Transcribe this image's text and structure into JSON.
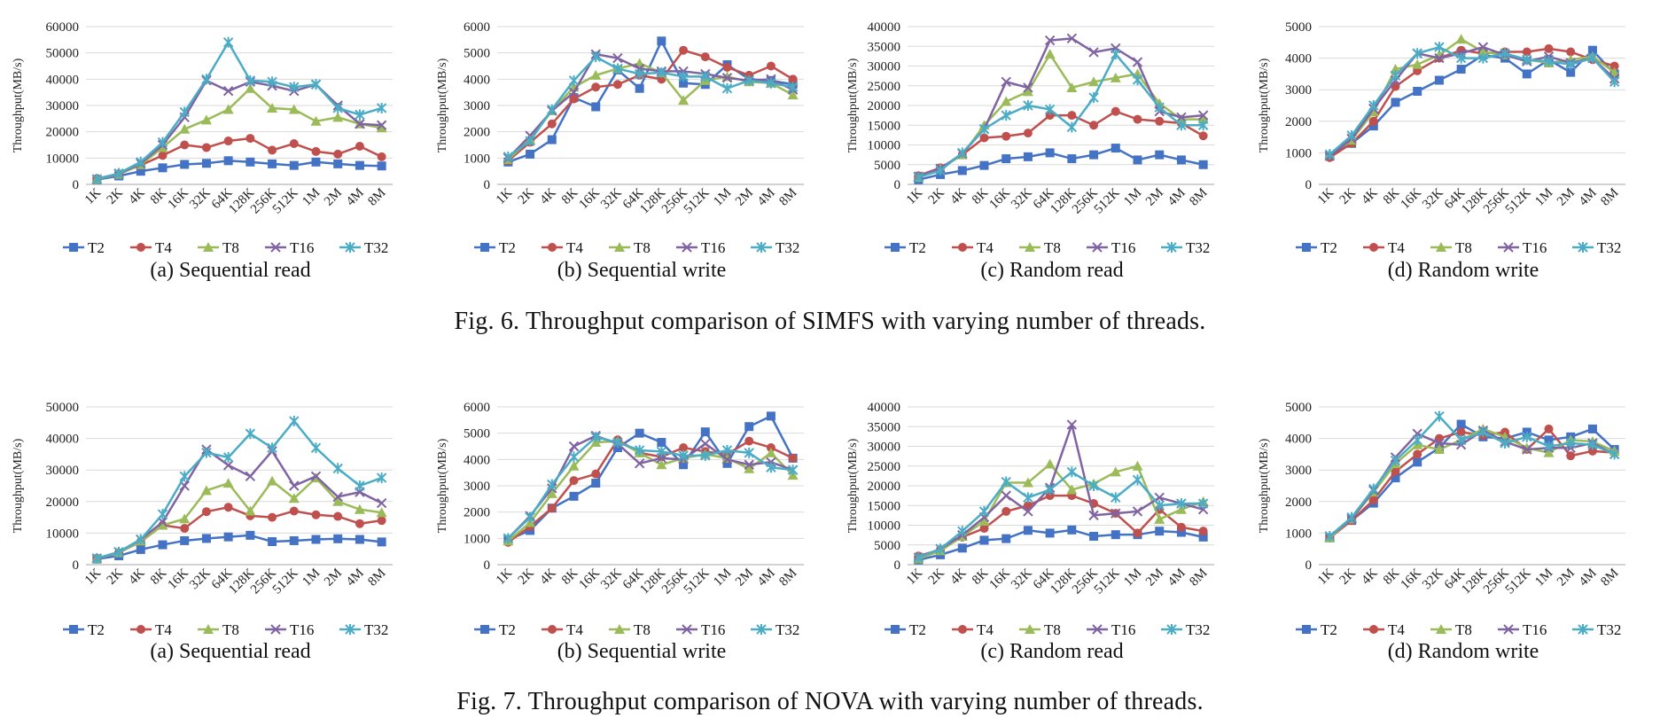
{
  "legend_labels": [
    "T2",
    "T4",
    "T8",
    "T16",
    "T32"
  ],
  "series_colors": [
    "#4472c4",
    "#c0504d",
    "#9bbb59",
    "#8064a2",
    "#4bacc6"
  ],
  "marker_shapes": [
    "square",
    "circle",
    "triangle",
    "x-mark",
    "star-mark"
  ],
  "figures": [
    {
      "caption": "Fig. 6.  Throughput comparison of SIMFS with varying number of threads."
    },
    {
      "caption": "Fig. 7.  Throughput comparison of NOVA with varying number of threads."
    }
  ],
  "chart_data": [
    {
      "type": "line",
      "figure": "Fig. 6",
      "panel": "(a)",
      "title": "Sequential read",
      "ylabel": "Throughput(MB/s)",
      "ylim": [
        0,
        60000
      ],
      "ystep": 10000,
      "yticks": [
        "0",
        "10000",
        "20000",
        "30000",
        "40000",
        "50000",
        "60000"
      ],
      "categories": [
        "1K",
        "2K",
        "4K",
        "8K",
        "16K",
        "32K",
        "64K",
        "128K",
        "256K",
        "512K",
        "1M",
        "2M",
        "4M",
        "8M"
      ],
      "legend": "bottom",
      "grid": true,
      "series": [
        {
          "name": "T2",
          "values": [
            1800,
            3200,
            5000,
            6300,
            7600,
            8000,
            9000,
            8500,
            7800,
            7200,
            8500,
            7800,
            7200,
            7000
          ]
        },
        {
          "name": "T4",
          "values": [
            2200,
            4000,
            7300,
            11000,
            15000,
            14000,
            16500,
            17500,
            13000,
            15500,
            12500,
            11500,
            14500,
            10500
          ]
        },
        {
          "name": "T8",
          "values": [
            2000,
            3800,
            7500,
            14000,
            21000,
            24500,
            28500,
            36500,
            29000,
            28500,
            24000,
            25500,
            23000,
            21500
          ]
        },
        {
          "name": "T16",
          "values": [
            2000,
            4000,
            8000,
            15000,
            25500,
            39500,
            35500,
            39000,
            37500,
            35500,
            38000,
            30000,
            23000,
            22500
          ]
        },
        {
          "name": "T32",
          "values": [
            2000,
            4200,
            8500,
            16000,
            27500,
            40000,
            54000,
            39500,
            39000,
            37000,
            38000,
            29000,
            26500,
            29000
          ]
        }
      ]
    },
    {
      "type": "line",
      "figure": "Fig. 6",
      "panel": "(b)",
      "title": "Sequential write",
      "ylabel": "Throughput(MB/s)",
      "ylim": [
        0,
        6000
      ],
      "ystep": 1000,
      "yticks": [
        "0",
        "1000",
        "2000",
        "3000",
        "4000",
        "5000",
        "6000"
      ],
      "categories": [
        "1K",
        "2K",
        "4K",
        "8K",
        "16K",
        "32K",
        "64K",
        "128K",
        "256K",
        "512K",
        "1M",
        "2M",
        "4M",
        "8M"
      ],
      "legend": "bottom",
      "grid": true,
      "series": [
        {
          "name": "T2",
          "values": [
            850,
            1150,
            1700,
            3300,
            2950,
            4350,
            3650,
            5450,
            3850,
            3800,
            4550,
            4000,
            3950,
            3800
          ]
        },
        {
          "name": "T4",
          "values": [
            900,
            1600,
            2300,
            3250,
            3700,
            3800,
            4150,
            4000,
            5100,
            4850,
            4450,
            4150,
            4500,
            4000
          ]
        },
        {
          "name": "T8",
          "values": [
            950,
            1700,
            2800,
            3700,
            4150,
            4400,
            4600,
            4250,
            3200,
            3950,
            4100,
            3900,
            3850,
            3400
          ]
        },
        {
          "name": "T16",
          "values": [
            1000,
            1850,
            2800,
            3500,
            4950,
            4800,
            4400,
            4300,
            4300,
            4200,
            4050,
            3950,
            4000,
            3600
          ]
        },
        {
          "name": "T32",
          "values": [
            1050,
            1650,
            2850,
            3950,
            4850,
            4400,
            4200,
            4250,
            4100,
            4100,
            3650,
            3950,
            3850,
            3700
          ]
        }
      ]
    },
    {
      "type": "line",
      "figure": "Fig. 6",
      "panel": "(c)",
      "title": "Random read",
      "ylabel": "Throughput(MB/s)",
      "ylim": [
        0,
        40000
      ],
      "ystep": 5000,
      "yticks": [
        "0",
        "5000",
        "10000",
        "15000",
        "20000",
        "25000",
        "30000",
        "35000",
        "40000"
      ],
      "categories": [
        "1K",
        "2K",
        "4K",
        "8K",
        "16K",
        "32K",
        "64K",
        "128K",
        "256K",
        "512K",
        "1M",
        "2M",
        "4M",
        "8M"
      ],
      "legend": "bottom",
      "grid": true,
      "series": [
        {
          "name": "T2",
          "values": [
            1200,
            2500,
            3500,
            4800,
            6500,
            7000,
            8000,
            6500,
            7500,
            9200,
            6200,
            7500,
            6200,
            5000
          ]
        },
        {
          "name": "T4",
          "values": [
            2200,
            4200,
            7500,
            11800,
            12200,
            13000,
            17500,
            17500,
            15000,
            18500,
            16500,
            16000,
            15500,
            12300
          ]
        },
        {
          "name": "T8",
          "values": [
            1800,
            4000,
            7500,
            15000,
            21000,
            23500,
            33000,
            24500,
            26000,
            27000,
            28000,
            20500,
            16500,
            16500
          ]
        },
        {
          "name": "T16",
          "values": [
            2000,
            4000,
            7800,
            14000,
            26000,
            24500,
            36500,
            37000,
            33500,
            34500,
            31000,
            18500,
            17000,
            17500
          ]
        },
        {
          "name": "T32",
          "values": [
            1800,
            3500,
            8000,
            14000,
            17500,
            20000,
            19000,
            14500,
            22000,
            33000,
            26500,
            19500,
            15000,
            15000
          ]
        }
      ]
    },
    {
      "type": "line",
      "figure": "Fig. 6",
      "panel": "(d)",
      "title": "Random write",
      "ylabel": "Throughput(MB/s)",
      "ylim": [
        0,
        5000
      ],
      "ystep": 1000,
      "yticks": [
        "0",
        "1000",
        "2000",
        "3000",
        "4000",
        "5000"
      ],
      "categories": [
        "1K",
        "2K",
        "4K",
        "8K",
        "16K",
        "32K",
        "64K",
        "128K",
        "256K",
        "512K",
        "1M",
        "2M",
        "4M",
        "8M"
      ],
      "legend": "bottom",
      "grid": true,
      "series": [
        {
          "name": "T2",
          "values": [
            900,
            1300,
            1850,
            2600,
            2950,
            3300,
            3650,
            4100,
            4000,
            3500,
            3950,
            3550,
            4250,
            3500
          ]
        },
        {
          "name": "T4",
          "values": [
            850,
            1300,
            2000,
            3100,
            3600,
            4000,
            4250,
            4150,
            4200,
            4200,
            4300,
            4200,
            3950,
            3750
          ]
        },
        {
          "name": "T8",
          "values": [
            950,
            1400,
            2300,
            3650,
            3800,
            4100,
            4600,
            4200,
            4100,
            3950,
            3850,
            3950,
            4050,
            3550
          ]
        },
        {
          "name": "T16",
          "values": [
            900,
            1450,
            2400,
            3300,
            4150,
            4000,
            4150,
            4350,
            4100,
            3900,
            4050,
            3850,
            4000,
            3350
          ]
        },
        {
          "name": "T32",
          "values": [
            950,
            1550,
            2500,
            3450,
            4150,
            4350,
            4000,
            4000,
            4150,
            3950,
            3900,
            3800,
            4000,
            3250
          ]
        }
      ]
    },
    {
      "type": "line",
      "figure": "Fig. 7",
      "panel": "(a)",
      "title": "Sequential read",
      "ylabel": "Throughput(MB/s)",
      "ylim": [
        0,
        50000
      ],
      "ystep": 10000,
      "yticks": [
        "0",
        "10000",
        "20000",
        "30000",
        "40000",
        "50000"
      ],
      "categories": [
        "1K",
        "2K",
        "4K",
        "8K",
        "16K",
        "32K",
        "64K",
        "128K",
        "256K",
        "512K",
        "1M",
        "2M",
        "4M",
        "8M"
      ],
      "legend": "bottom",
      "grid": true,
      "series": [
        {
          "name": "T2",
          "values": [
            1800,
            2800,
            4800,
            6300,
            7600,
            8300,
            8800,
            9300,
            7300,
            7600,
            8000,
            8200,
            8000,
            7200
          ]
        },
        {
          "name": "T4",
          "values": [
            2000,
            3800,
            7300,
            12500,
            11500,
            16800,
            18200,
            15500,
            15000,
            17000,
            15800,
            15300,
            13000,
            14000
          ]
        },
        {
          "name": "T8",
          "values": [
            2000,
            3800,
            7500,
            12500,
            14500,
            23500,
            25800,
            17000,
            26500,
            21000,
            27500,
            20000,
            17500,
            16500
          ]
        },
        {
          "name": "T16",
          "values": [
            2000,
            4000,
            8000,
            13500,
            25000,
            36500,
            31500,
            28000,
            36000,
            25000,
            28000,
            21500,
            23000,
            19500
          ]
        },
        {
          "name": "T32",
          "values": [
            2000,
            4000,
            8000,
            16000,
            28000,
            35500,
            34000,
            41500,
            37000,
            45500,
            37000,
            30500,
            25000,
            27500
          ]
        }
      ]
    },
    {
      "type": "line",
      "figure": "Fig. 7",
      "panel": "(b)",
      "title": "Sequential write",
      "ylabel": "Throughput(MB/s)",
      "ylim": [
        0,
        6000
      ],
      "ystep": 1000,
      "yticks": [
        "0",
        "1000",
        "2000",
        "3000",
        "4000",
        "5000",
        "6000"
      ],
      "categories": [
        "1K",
        "2K",
        "4K",
        "8K",
        "16K",
        "32K",
        "64K",
        "128K",
        "256K",
        "512K",
        "1M",
        "2M",
        "4M",
        "8M"
      ],
      "legend": "bottom",
      "grid": true,
      "series": [
        {
          "name": "T2",
          "values": [
            950,
            1300,
            2150,
            2600,
            3100,
            4450,
            5000,
            4650,
            3800,
            5050,
            3850,
            5250,
            5650,
            4050
          ]
        },
        {
          "name": "T4",
          "values": [
            850,
            1450,
            2150,
            3200,
            3450,
            4750,
            4250,
            4100,
            4450,
            4300,
            4200,
            4700,
            4450,
            4050
          ]
        },
        {
          "name": "T8",
          "values": [
            900,
            1600,
            2700,
            3750,
            4650,
            4700,
            4250,
            3800,
            4050,
            4200,
            4050,
            3650,
            4250,
            3400
          ]
        },
        {
          "name": "T16",
          "values": [
            1000,
            1850,
            2900,
            4500,
            4900,
            4600,
            3850,
            4050,
            4000,
            4600,
            4000,
            3800,
            3900,
            3600
          ]
        },
        {
          "name": "T32",
          "values": [
            1000,
            1800,
            3050,
            4100,
            4850,
            4650,
            4350,
            4300,
            4150,
            4150,
            4350,
            4250,
            3700,
            3600
          ]
        }
      ]
    },
    {
      "type": "line",
      "figure": "Fig. 7",
      "panel": "(c)",
      "title": "Random read",
      "ylabel": "Throughput(MB/s)",
      "ylim": [
        0,
        40000
      ],
      "ystep": 5000,
      "yticks": [
        "0",
        "5000",
        "10000",
        "15000",
        "20000",
        "25000",
        "30000",
        "35000",
        "40000"
      ],
      "categories": [
        "1K",
        "2K",
        "4K",
        "8K",
        "16K",
        "32K",
        "64K",
        "128K",
        "256K",
        "512K",
        "1M",
        "2M",
        "4M",
        "8M"
      ],
      "legend": "bottom",
      "grid": true,
      "series": [
        {
          "name": "T2",
          "values": [
            1200,
            2500,
            4200,
            6200,
            6600,
            8700,
            8000,
            8800,
            7200,
            7600,
            7600,
            8500,
            8200,
            7000
          ]
        },
        {
          "name": "T4",
          "values": [
            2200,
            3800,
            7000,
            9200,
            13500,
            15000,
            17500,
            17500,
            15500,
            13000,
            8000,
            14000,
            9500,
            8500
          ]
        },
        {
          "name": "T8",
          "values": [
            1500,
            3500,
            7200,
            11000,
            20800,
            20800,
            25500,
            19000,
            20500,
            23500,
            25000,
            11500,
            14000,
            16000
          ]
        },
        {
          "name": "T16",
          "values": [
            1800,
            4000,
            7500,
            12000,
            17500,
            13500,
            19500,
            35500,
            12500,
            13000,
            13500,
            17000,
            15500,
            14000
          ]
        },
        {
          "name": "T32",
          "values": [
            1800,
            4000,
            8500,
            13500,
            21000,
            17000,
            19000,
            23500,
            20000,
            17000,
            21500,
            15000,
            15500,
            15500
          ]
        }
      ]
    },
    {
      "type": "line",
      "figure": "Fig. 7",
      "panel": "(d)",
      "title": "Random write",
      "ylabel": "Throughput(MB/s)",
      "ylim": [
        0,
        5000
      ],
      "ystep": 1000,
      "yticks": [
        "0",
        "1000",
        "2000",
        "3000",
        "4000",
        "5000"
      ],
      "categories": [
        "1K",
        "2K",
        "4K",
        "8K",
        "16K",
        "32K",
        "64K",
        "128K",
        "256K",
        "512K",
        "1M",
        "2M",
        "4M",
        "8M"
      ],
      "legend": "bottom",
      "grid": true,
      "series": [
        {
          "name": "T2",
          "values": [
            850,
            1400,
            1950,
            2750,
            3250,
            3700,
            4450,
            4050,
            4000,
            4200,
            3950,
            4050,
            4300,
            3650
          ]
        },
        {
          "name": "T4",
          "values": [
            850,
            1400,
            2050,
            2950,
            3500,
            4000,
            4200,
            4100,
            4200,
            3650,
            4300,
            3450,
            3600,
            3550
          ]
        },
        {
          "name": "T8",
          "values": [
            850,
            1450,
            2300,
            3200,
            3800,
            3650,
            3950,
            4300,
            4050,
            3700,
            3550,
            3950,
            3900,
            3600
          ]
        },
        {
          "name": "T16",
          "values": [
            900,
            1450,
            2350,
            3400,
            4150,
            3850,
            3800,
            4250,
            3900,
            3650,
            3700,
            3700,
            3850,
            3500
          ]
        },
        {
          "name": "T32",
          "values": [
            900,
            1500,
            2400,
            3300,
            3950,
            4700,
            3950,
            4200,
            3850,
            4050,
            3750,
            3850,
            3800,
            3500
          ]
        }
      ]
    }
  ]
}
